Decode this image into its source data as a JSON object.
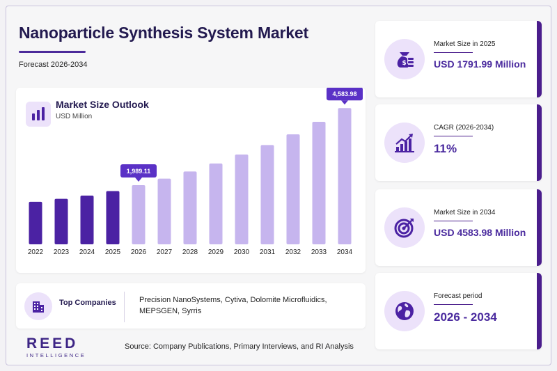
{
  "header": {
    "title": "Nanoparticle Synthesis System Market",
    "subtitle": "Forecast 2026-2034"
  },
  "chart_card": {
    "title": "Market Size Outlook",
    "unit": "USD Million"
  },
  "chart_data": {
    "type": "bar",
    "title": "Market Size Outlook",
    "ylabel": "USD Million",
    "categories": [
      "2022",
      "2023",
      "2024",
      "2025",
      "2026",
      "2027",
      "2028",
      "2029",
      "2030",
      "2031",
      "2032",
      "2033",
      "2034"
    ],
    "values": [
      1430,
      1530,
      1640,
      1791.99,
      1989.11,
      2210,
      2450,
      2720,
      3020,
      3340,
      3700,
      4120,
      4583.98
    ],
    "ylim": [
      0,
      4800
    ],
    "grid": false,
    "historical_color": "#4b22a3",
    "forecast_color": "#c6b5ee",
    "historical_years": [
      "2022",
      "2023",
      "2024",
      "2025"
    ],
    "callouts": [
      {
        "category": "2026",
        "label": "1,989.11"
      },
      {
        "category": "2034",
        "label": "4,583.98"
      }
    ],
    "callout_color": "#5a31c6"
  },
  "companies": {
    "label": "Top Companies",
    "list": "Precision NanoSystems, Cytiva, Dolomite Microfluidics, MEPSGEN, Syrris"
  },
  "footer": {
    "logo_main": "REED",
    "logo_sub": "INTELLIGENCE",
    "source": "Source: Company Publications, Primary Interviews, and RI Analysis"
  },
  "kpis": [
    {
      "label": "Market Size in 2025",
      "value": "USD 1791.99 Million",
      "icon": "money-bag-icon"
    },
    {
      "label": "CAGR (2026-2034)",
      "value": "11%",
      "icon": "growth-chart-icon"
    },
    {
      "label": "Market Size in 2034",
      "value": "USD 4583.98 Million",
      "icon": "target-icon"
    },
    {
      "label": "Forecast period",
      "value": "2026 - 2034",
      "icon": "globe-icon"
    }
  ],
  "colors": {
    "accent": "#4a1d8c",
    "icon_bg": "#ece2fa",
    "value_text": "#4a2a9e"
  }
}
